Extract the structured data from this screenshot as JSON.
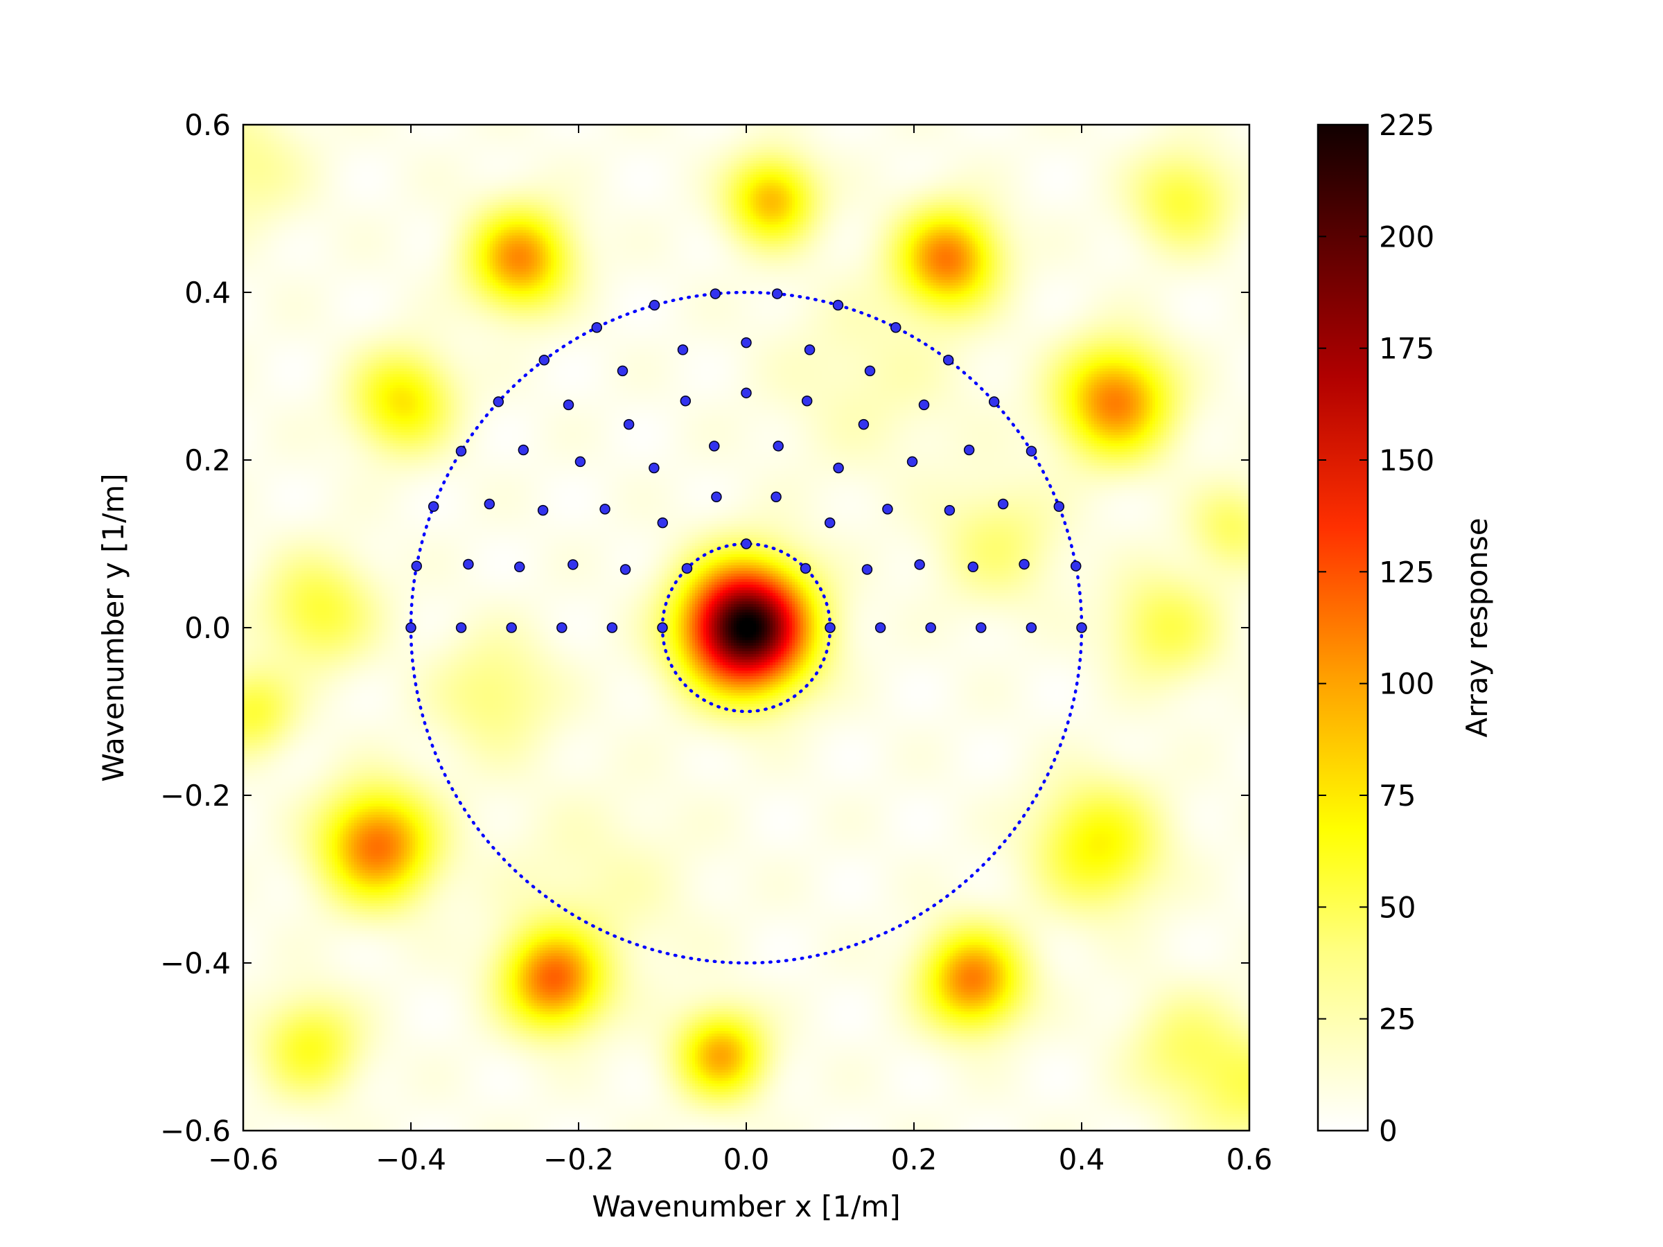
{
  "chart_data": {
    "type": "heatmap",
    "title": "",
    "xlabel": "Wavenumber x [1/m]",
    "ylabel": "Wavenumber y [1/m]",
    "xlim": [
      -0.6,
      0.6
    ],
    "ylim": [
      -0.6,
      0.6
    ],
    "x_ticks": [
      "−0.6",
      "−0.4",
      "−0.2",
      "0.0",
      "0.2",
      "0.4",
      "0.6"
    ],
    "y_ticks": [
      "−0.6",
      "−0.4",
      "−0.2",
      "0.0",
      "0.2",
      "0.4",
      "0.6"
    ],
    "x_tick_values": [
      -0.6,
      -0.4,
      -0.2,
      0.0,
      0.2,
      0.4,
      0.6
    ],
    "y_tick_values": [
      -0.6,
      -0.4,
      -0.2,
      0.0,
      0.2,
      0.4,
      0.6
    ],
    "colorbar": {
      "label": "Array response",
      "range": [
        0,
        225
      ],
      "ticks": [
        "0",
        "25",
        "50",
        "75",
        "100",
        "125",
        "150",
        "175",
        "200",
        "225"
      ],
      "tick_values": [
        0,
        25,
        50,
        75,
        100,
        125,
        150,
        175,
        200,
        225
      ],
      "colormap": "hot_r",
      "colors": [
        "#ffffff",
        "#ffff00",
        "#ff6600",
        "#e00000",
        "#110000"
      ]
    },
    "response_peaks": [
      {
        "x": 0.0,
        "y": 0.0,
        "value": 225,
        "width": 0.05
      },
      {
        "x": 0.44,
        "y": 0.27,
        "value": 95,
        "width": 0.045
      },
      {
        "x": 0.24,
        "y": 0.44,
        "value": 95,
        "width": 0.04
      },
      {
        "x": -0.27,
        "y": 0.44,
        "value": 90,
        "width": 0.04
      },
      {
        "x": 0.03,
        "y": 0.51,
        "value": 75,
        "width": 0.035
      },
      {
        "x": -0.41,
        "y": 0.27,
        "value": 60,
        "width": 0.04
      },
      {
        "x": 0.52,
        "y": 0.51,
        "value": 40,
        "width": 0.04
      },
      {
        "x": -0.44,
        "y": -0.26,
        "value": 100,
        "width": 0.045
      },
      {
        "x": -0.23,
        "y": -0.42,
        "value": 100,
        "width": 0.04
      },
      {
        "x": 0.27,
        "y": -0.42,
        "value": 95,
        "width": 0.04
      },
      {
        "x": -0.03,
        "y": -0.51,
        "value": 80,
        "width": 0.035
      },
      {
        "x": 0.42,
        "y": -0.26,
        "value": 55,
        "width": 0.05
      },
      {
        "x": -0.52,
        "y": -0.5,
        "value": 45,
        "width": 0.04
      },
      {
        "x": 0.52,
        "y": -0.5,
        "value": 25,
        "width": 0.045
      },
      {
        "x": -0.51,
        "y": 0.02,
        "value": 40,
        "width": 0.045
      },
      {
        "x": 0.5,
        "y": 0.0,
        "value": 35,
        "width": 0.045
      },
      {
        "x": -0.59,
        "y": -0.1,
        "value": 40,
        "width": 0.035
      },
      {
        "x": 0.58,
        "y": 0.12,
        "value": 30,
        "width": 0.035
      },
      {
        "x": -0.3,
        "y": -0.08,
        "value": 25,
        "width": 0.05
      },
      {
        "x": 0.3,
        "y": 0.1,
        "value": 25,
        "width": 0.05
      },
      {
        "x": -0.18,
        "y": -0.32,
        "value": 12,
        "width": 0.08
      },
      {
        "x": 0.15,
        "y": 0.3,
        "value": 12,
        "width": 0.08
      },
      {
        "x": 0.6,
        "y": -0.55,
        "value": 30,
        "width": 0.05
      },
      {
        "x": -0.6,
        "y": 0.55,
        "value": 20,
        "width": 0.05
      }
    ],
    "circles": [
      {
        "name": "inner",
        "radius": 0.1,
        "color": "#0000ff",
        "style": "dotted"
      },
      {
        "name": "outer",
        "radius": 0.4,
        "color": "#0000ff",
        "style": "dotted"
      }
    ],
    "sampling_points": {
      "color": "#3333ee",
      "radii": [
        0.1,
        0.16,
        0.22,
        0.28,
        0.34,
        0.4
      ],
      "counts": [
        5,
        8,
        10,
        13,
        15,
        18
      ],
      "angle_range_deg": [
        0,
        180
      ]
    }
  }
}
